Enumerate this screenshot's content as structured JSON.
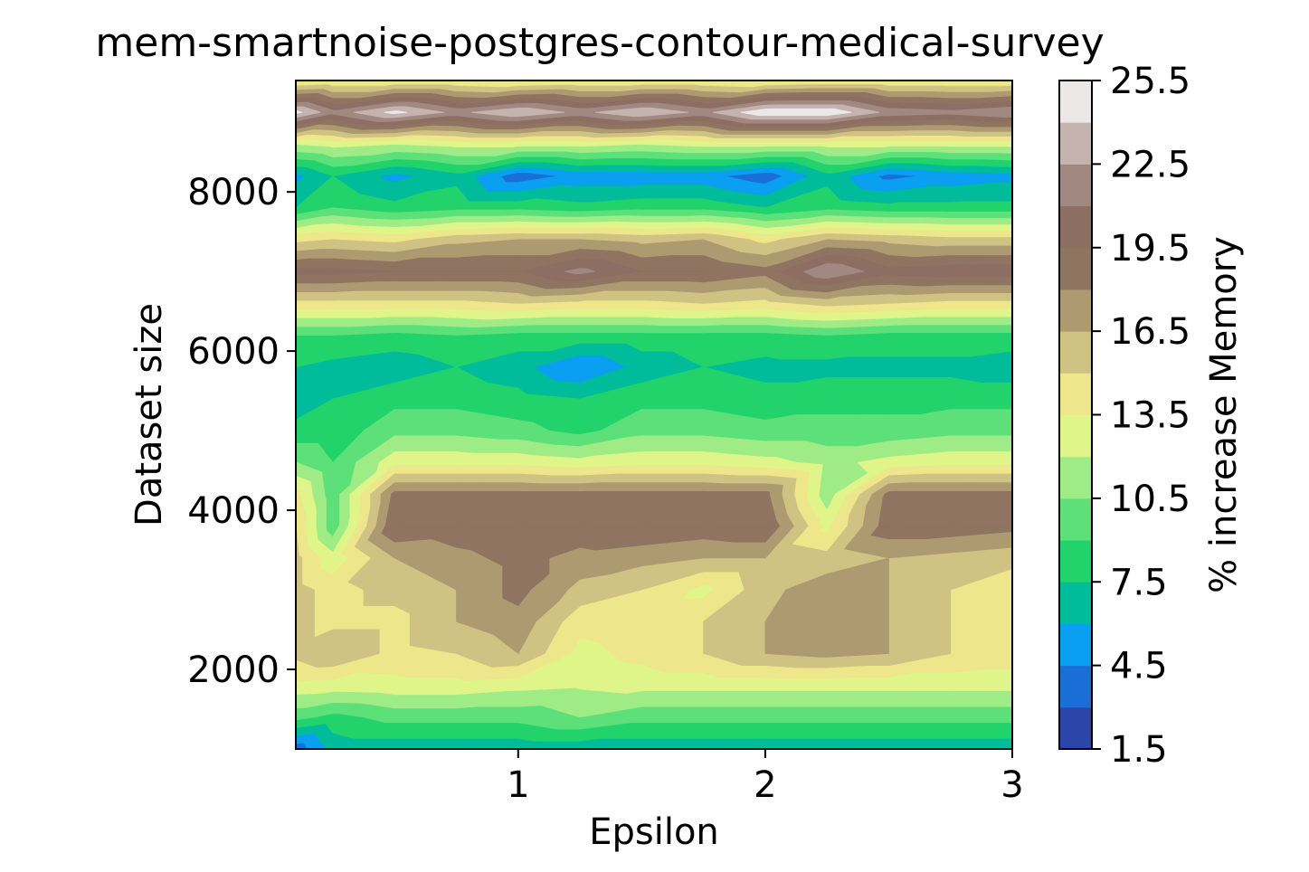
{
  "chart_data": {
    "type": "heatmap",
    "subtype": "filled-contour",
    "title": "mem-smartnoise-postgres-contour-medical-survey",
    "xlabel": "Epsilon",
    "ylabel": "Dataset size",
    "colorbar_label": "% increase Memory",
    "colormap": "terrain",
    "grid": false,
    "xlim": [
      0.1,
      3.0
    ],
    "ylim": [
      1000,
      9400
    ],
    "x_ticks": [
      1,
      2,
      3
    ],
    "x_tick_labels": [
      "1",
      "2",
      "3"
    ],
    "y_ticks": [
      2000,
      4000,
      6000,
      8000
    ],
    "y_tick_labels": [
      "2000",
      "4000",
      "6000",
      "8000"
    ],
    "levels": [
      1.5,
      3.0,
      4.5,
      6.0,
      7.5,
      9.0,
      10.5,
      12.0,
      13.5,
      15.0,
      16.5,
      18.0,
      19.5,
      21.0,
      22.5,
      24.0,
      25.5
    ],
    "colorbar_tick_labels": [
      "1.5",
      "4.5",
      "7.5",
      "10.5",
      "13.5",
      "16.5",
      "19.5",
      "22.5",
      "25.5"
    ],
    "level_colors": [
      "#2c45a8",
      "#1a6fd6",
      "#0a9ff0",
      "#00bc9a",
      "#22d26a",
      "#5de07a",
      "#9fec86",
      "#dff58a",
      "#ede68a",
      "#d0c282",
      "#ad9a70",
      "#8e7461",
      "#8c6e63",
      "#a18881",
      "#c4b3ae",
      "#ece8e7"
    ],
    "x": [
      0.1,
      0.25,
      0.5,
      0.75,
      1.0,
      1.25,
      1.5,
      1.75,
      2.0,
      2.25,
      2.5,
      2.75,
      3.0
    ],
    "y": [
      1000,
      1400,
      1800,
      2200,
      2600,
      3000,
      3400,
      3800,
      4200,
      4600,
      5000,
      5400,
      5800,
      6200,
      6600,
      7000,
      7400,
      7800,
      8200,
      8600,
      9000,
      9400
    ],
    "z": [
      [
        3.5,
        6.5,
        6.5,
        6.5,
        6.5,
        6.5,
        6.5,
        6.5,
        6.5,
        6.5,
        6.5,
        6.5,
        6.5
      ],
      [
        9.5,
        8.5,
        9.5,
        9.5,
        9.5,
        10.5,
        9.5,
        9.5,
        9.5,
        9.5,
        9.5,
        9.5,
        9.5
      ],
      [
        13.0,
        12.8,
        13.0,
        13.0,
        12.5,
        12.2,
        12.5,
        12.5,
        12.5,
        12.5,
        12.5,
        12.5,
        12.5
      ],
      [
        15.5,
        16.5,
        14.5,
        15.0,
        16.5,
        13.0,
        14.0,
        15.0,
        16.5,
        17.0,
        16.5,
        15.0,
        14.5
      ],
      [
        15.5,
        14.5,
        14.5,
        16.5,
        17.5,
        14.0,
        14.5,
        15.0,
        16.5,
        17.5,
        16.5,
        15.0,
        14.0
      ],
      [
        15.5,
        14.5,
        15.5,
        16.5,
        18.5,
        16.0,
        15.0,
        13.0,
        16.0,
        17.5,
        16.5,
        15.0,
        14.0
      ],
      [
        15.5,
        12.5,
        16.5,
        17.5,
        18.5,
        17.5,
        17.0,
        16.5,
        16.5,
        15.5,
        16.5,
        16.0,
        15.5
      ],
      [
        15.0,
        9.5,
        19.5,
        19.0,
        19.5,
        19.0,
        19.5,
        19.0,
        19.5,
        13.0,
        19.0,
        19.0,
        18.5
      ],
      [
        14.0,
        9.5,
        18.5,
        18.5,
        18.5,
        18.5,
        18.5,
        18.5,
        18.5,
        11.0,
        18.5,
        18.5,
        18.5
      ],
      [
        10.5,
        9.0,
        13.0,
        13.0,
        13.0,
        12.5,
        13.0,
        13.0,
        12.5,
        11.5,
        12.5,
        13.0,
        13.0
      ],
      [
        8.0,
        8.0,
        10.0,
        10.0,
        9.5,
        8.5,
        10.0,
        10.0,
        9.5,
        9.5,
        9.5,
        10.0,
        10.0
      ],
      [
        6.5,
        7.5,
        8.5,
        8.5,
        8.0,
        7.5,
        8.5,
        8.5,
        8.0,
        8.5,
        8.5,
        8.5,
        8.5
      ],
      [
        7.5,
        7.0,
        6.5,
        7.5,
        6.5,
        4.5,
        6.5,
        7.5,
        7.0,
        7.0,
        7.0,
        7.0,
        6.5
      ],
      [
        9.0,
        9.0,
        8.5,
        9.0,
        8.5,
        8.5,
        8.5,
        8.5,
        8.5,
        9.0,
        8.5,
        8.5,
        8.5
      ],
      [
        14.5,
        14.5,
        14.5,
        14.5,
        15.0,
        14.5,
        14.5,
        15.0,
        14.5,
        15.5,
        15.0,
        14.5,
        14.5
      ],
      [
        20.0,
        20.0,
        19.5,
        19.5,
        19.5,
        21.5,
        19.5,
        19.5,
        18.5,
        22.5,
        20.0,
        20.5,
        20.5
      ],
      [
        14.5,
        15.0,
        14.5,
        16.0,
        16.5,
        16.5,
        16.0,
        16.5,
        14.5,
        16.5,
        16.0,
        15.5,
        15.5
      ],
      [
        7.5,
        9.0,
        8.0,
        8.5,
        8.5,
        8.0,
        8.5,
        8.5,
        7.5,
        8.5,
        8.0,
        8.0,
        8.0
      ],
      [
        5.5,
        7.5,
        5.5,
        7.0,
        3.5,
        5.0,
        5.0,
        5.0,
        3.5,
        7.0,
        4.0,
        5.0,
        5.5
      ],
      [
        12.0,
        12.5,
        12.0,
        12.5,
        12.5,
        12.5,
        12.0,
        12.5,
        12.5,
        12.5,
        12.5,
        12.5,
        12.5
      ],
      [
        24.5,
        21.5,
        24.5,
        22.0,
        24.0,
        22.0,
        24.0,
        22.0,
        25.3,
        25.3,
        22.0,
        21.5,
        22.5
      ],
      [
        13.0,
        13.5,
        13.5,
        13.5,
        13.0,
        13.5,
        13.5,
        13.5,
        13.0,
        13.5,
        13.5,
        13.5,
        13.5
      ]
    ]
  }
}
